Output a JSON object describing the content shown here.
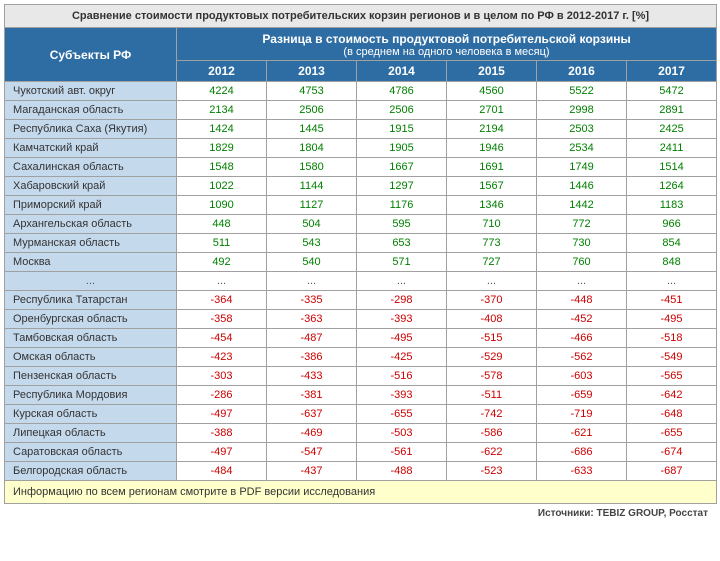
{
  "title": "Сравнение стоимости продуктовых потребительских корзин регионов и в целом по РФ в 2012-2017 г. [%]",
  "headers": {
    "subjects": "Субъекты РФ",
    "diff_title": "Разница в стоимость продуктовой потребительской корзины",
    "diff_sub": "(в среднем на одного человека в месяц)",
    "years": [
      "2012",
      "2013",
      "2014",
      "2015",
      "2016",
      "2017"
    ]
  },
  "rows_top": [
    {
      "region": "Чукотский авт. округ",
      "vals": [
        4224,
        4753,
        4786,
        4560,
        5522,
        5472
      ]
    },
    {
      "region": "Магаданская область",
      "vals": [
        2134,
        2506,
        2506,
        2701,
        2998,
        2891
      ]
    },
    {
      "region": "Республика Саха (Якутия)",
      "vals": [
        1424,
        1445,
        1915,
        2194,
        2503,
        2425
      ]
    },
    {
      "region": "Камчатский край",
      "vals": [
        1829,
        1804,
        1905,
        1946,
        2534,
        2411
      ]
    },
    {
      "region": "Сахалинская область",
      "vals": [
        1548,
        1580,
        1667,
        1691,
        1749,
        1514
      ]
    },
    {
      "region": "Хабаровский край",
      "vals": [
        1022,
        1144,
        1297,
        1567,
        1446,
        1264
      ]
    },
    {
      "region": "Приморский край",
      "vals": [
        1090,
        1127,
        1176,
        1346,
        1442,
        1183
      ]
    },
    {
      "region": "Архангельская область",
      "vals": [
        448,
        504,
        595,
        710,
        772,
        966
      ]
    },
    {
      "region": "Мурманская область",
      "vals": [
        511,
        543,
        653,
        773,
        730,
        854
      ]
    },
    {
      "region": "Москва",
      "vals": [
        492,
        540,
        571,
        727,
        760,
        848
      ]
    }
  ],
  "rows_bottom": [
    {
      "region": "Республика Татарстан",
      "vals": [
        -364,
        -335,
        -298,
        -370,
        -448,
        -451
      ]
    },
    {
      "region": "Оренбургская область",
      "vals": [
        -358,
        -363,
        -393,
        -408,
        -452,
        -495
      ]
    },
    {
      "region": "Тамбовская область",
      "vals": [
        -454,
        -487,
        -495,
        -515,
        -466,
        -518
      ]
    },
    {
      "region": "Омская область",
      "vals": [
        -423,
        -386,
        -425,
        -529,
        -562,
        -549
      ]
    },
    {
      "region": "Пензенская область",
      "vals": [
        -303,
        -433,
        -516,
        -578,
        -603,
        -565
      ]
    },
    {
      "region": "Республика Мордовия",
      "vals": [
        -286,
        -381,
        -393,
        -511,
        -659,
        -642
      ]
    },
    {
      "region": "Курская область",
      "vals": [
        -497,
        -637,
        -655,
        -742,
        -719,
        -648
      ]
    },
    {
      "region": "Липецкая область",
      "vals": [
        -388,
        -469,
        -503,
        -586,
        -621,
        -655
      ]
    },
    {
      "region": "Саратовская область",
      "vals": [
        -497,
        -547,
        -561,
        -622,
        -686,
        -674
      ]
    },
    {
      "region": "Белгородская область",
      "vals": [
        -484,
        -437,
        -488,
        -523,
        -633,
        -687
      ]
    }
  ],
  "footer_note": "Информацию по всем регионам смотрите в PDF версии исследования",
  "sources": "Источники: TEBIZ GROUP, Росстат",
  "colors": {
    "header_bg": "#2e6da4",
    "region_bg": "#c5d9ed",
    "pos_text": "#008000",
    "neg_text": "#cc0000",
    "footer_bg": "#ffffcc"
  }
}
